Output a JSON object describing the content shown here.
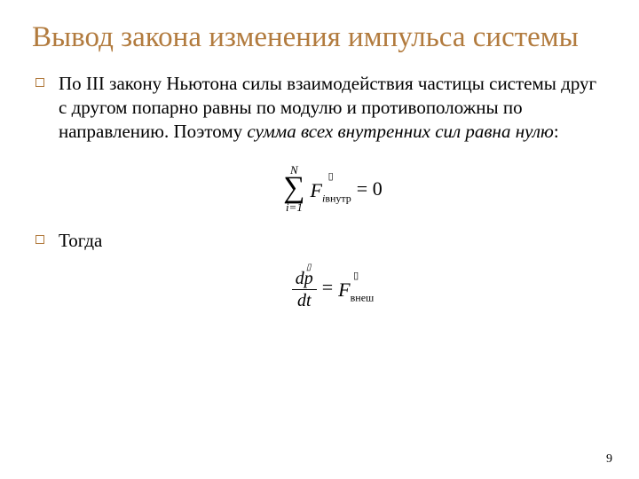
{
  "colors": {
    "accent": "#b27b3e",
    "text": "#000000",
    "background": "#ffffff"
  },
  "title": "Вывод закона изменения импульса системы",
  "bullets": {
    "b1_part1": "По III закону Ньютона силы взаимодействия частицы системы друг с другом попарно равны по модулю и противоположны по направлению. Поэтому ",
    "b1_italic": "сумма всех внутренних сил равна нулю",
    "b1_part2": ":",
    "b2": "Тогда"
  },
  "eq1": {
    "sigma_top": "N",
    "sigma_bottom": "i=1",
    "vec_base": "F",
    "sub_i": "i",
    "sub_label": "внутр",
    "rhs": "= 0"
  },
  "eq2": {
    "num_d": "d",
    "num_vec": "p",
    "den": "dt",
    "eq": "=",
    "vec_base": "F",
    "sub_label": "внеш"
  },
  "page_number": "9"
}
